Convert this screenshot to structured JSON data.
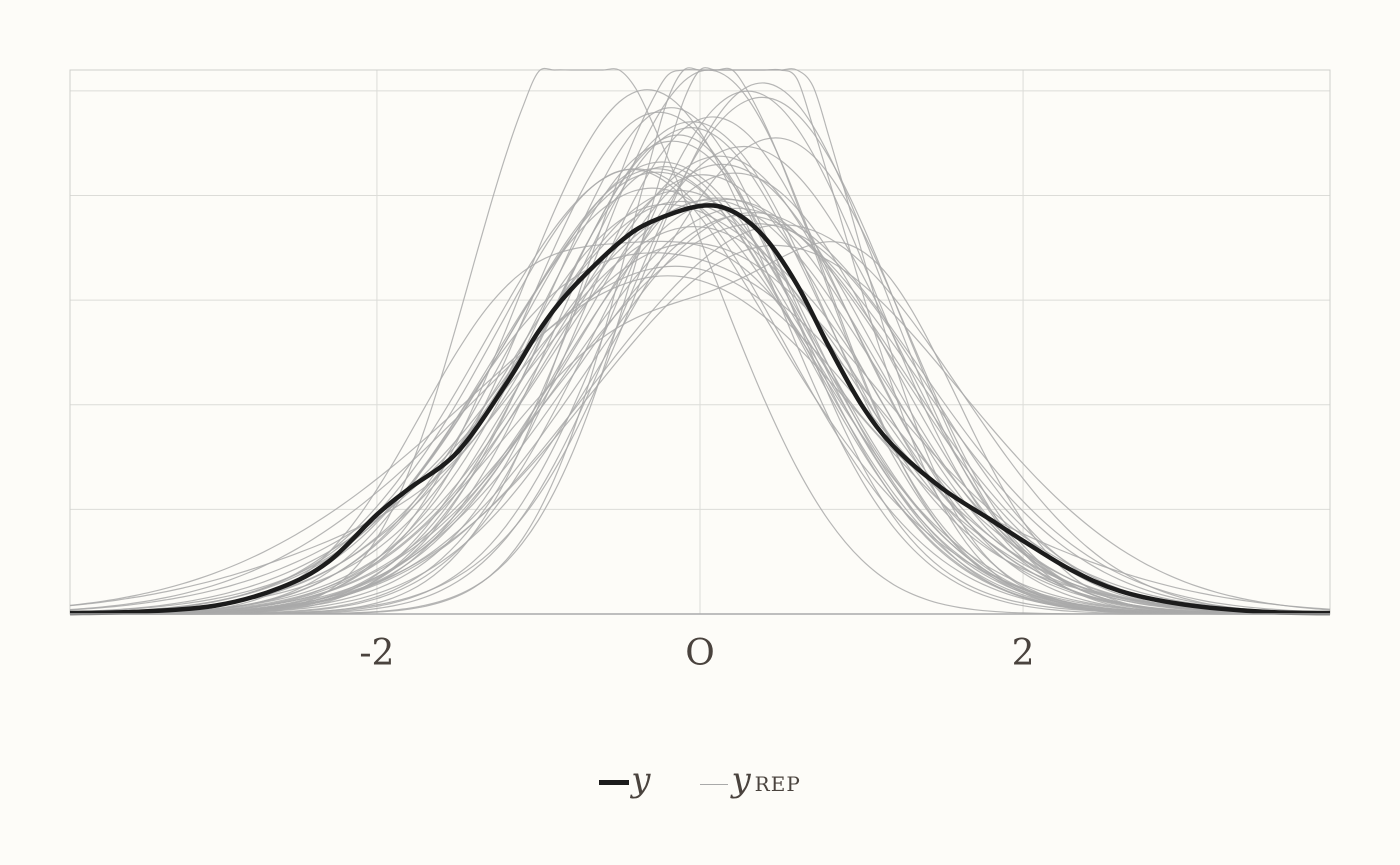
{
  "chart_data": {
    "type": "line",
    "title": "",
    "xlabel": "",
    "ylabel": "",
    "xlim": [
      -3.9,
      3.9
    ],
    "ylim": [
      0,
      0.52
    ],
    "x_ticks": [
      -2,
      0,
      2
    ],
    "x_tick_labels": [
      "-2",
      "O",
      "2"
    ],
    "grid": true,
    "legend_position": "bottom",
    "legend": {
      "observed": "y",
      "replicated": "y",
      "replicated_subscript": "REP"
    },
    "colors": {
      "observed": "#1c1c1c",
      "replicated": "#a9a9a9",
      "background": "#fdfcf8"
    },
    "series": [
      {
        "name": "y",
        "x": [
          -3.9,
          -3.5,
          -3.0,
          -2.6,
          -2.3,
          -2.0,
          -1.8,
          -1.5,
          -1.2,
          -1.0,
          -0.8,
          -0.5,
          -0.3,
          0.0,
          0.2,
          0.4,
          0.6,
          0.8,
          1.0,
          1.2,
          1.5,
          1.8,
          2.0,
          2.3,
          2.6,
          3.0,
          3.5,
          3.9
        ],
        "y": [
          0.001,
          0.002,
          0.008,
          0.025,
          0.05,
          0.095,
          0.12,
          0.155,
          0.22,
          0.27,
          0.31,
          0.355,
          0.375,
          0.39,
          0.385,
          0.36,
          0.315,
          0.255,
          0.2,
          0.16,
          0.12,
          0.09,
          0.07,
          0.042,
          0.022,
          0.009,
          0.002,
          0.001
        ]
      }
    ]
  }
}
